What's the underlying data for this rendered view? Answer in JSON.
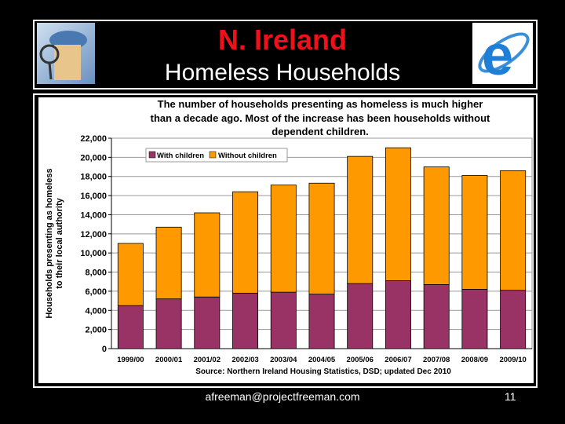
{
  "slide": {
    "title": "N. Ireland",
    "subtitle": "Homeless Households",
    "footer_email": "afreeman@projectfreeman.com",
    "page_number": "11"
  },
  "chart_data": {
    "type": "bar",
    "stacked": true,
    "title_lines": [
      "The number of households presenting as homeless is much higher",
      "than a decade ago.  Most of the increase has been households without",
      "dependent children."
    ],
    "ylabel_lines": [
      "Households presenting as homeless",
      "to  their local authority"
    ],
    "xlabel": "",
    "source": "Source: Northern Ireland Housing Statistics, DSD; updated Dec 2010",
    "categories": [
      "1999/00",
      "2000/01",
      "2001/02",
      "2002/03",
      "2003/04",
      "2004/05",
      "2005/06",
      "2006/07",
      "2007/08",
      "2008/09",
      "2009/10"
    ],
    "series": [
      {
        "name": "With children",
        "color": "#993366",
        "values": [
          4500,
          5200,
          5400,
          5800,
          5900,
          5700,
          6800,
          7100,
          6700,
          6200,
          6100
        ]
      },
      {
        "name": "Without children",
        "color": "#FF9900",
        "values": [
          6500,
          7500,
          8800,
          10600,
          11200,
          11600,
          13300,
          13900,
          12300,
          11900,
          12500
        ]
      }
    ],
    "ylim": [
      0,
      22000
    ],
    "yticks": [
      "0",
      "2,000",
      "4,000",
      "6,000",
      "8,000",
      "10,000",
      "12,000",
      "14,000",
      "16,000",
      "18,000",
      "20,000",
      "22,000"
    ],
    "grid": true,
    "legend_position": "top-left"
  }
}
